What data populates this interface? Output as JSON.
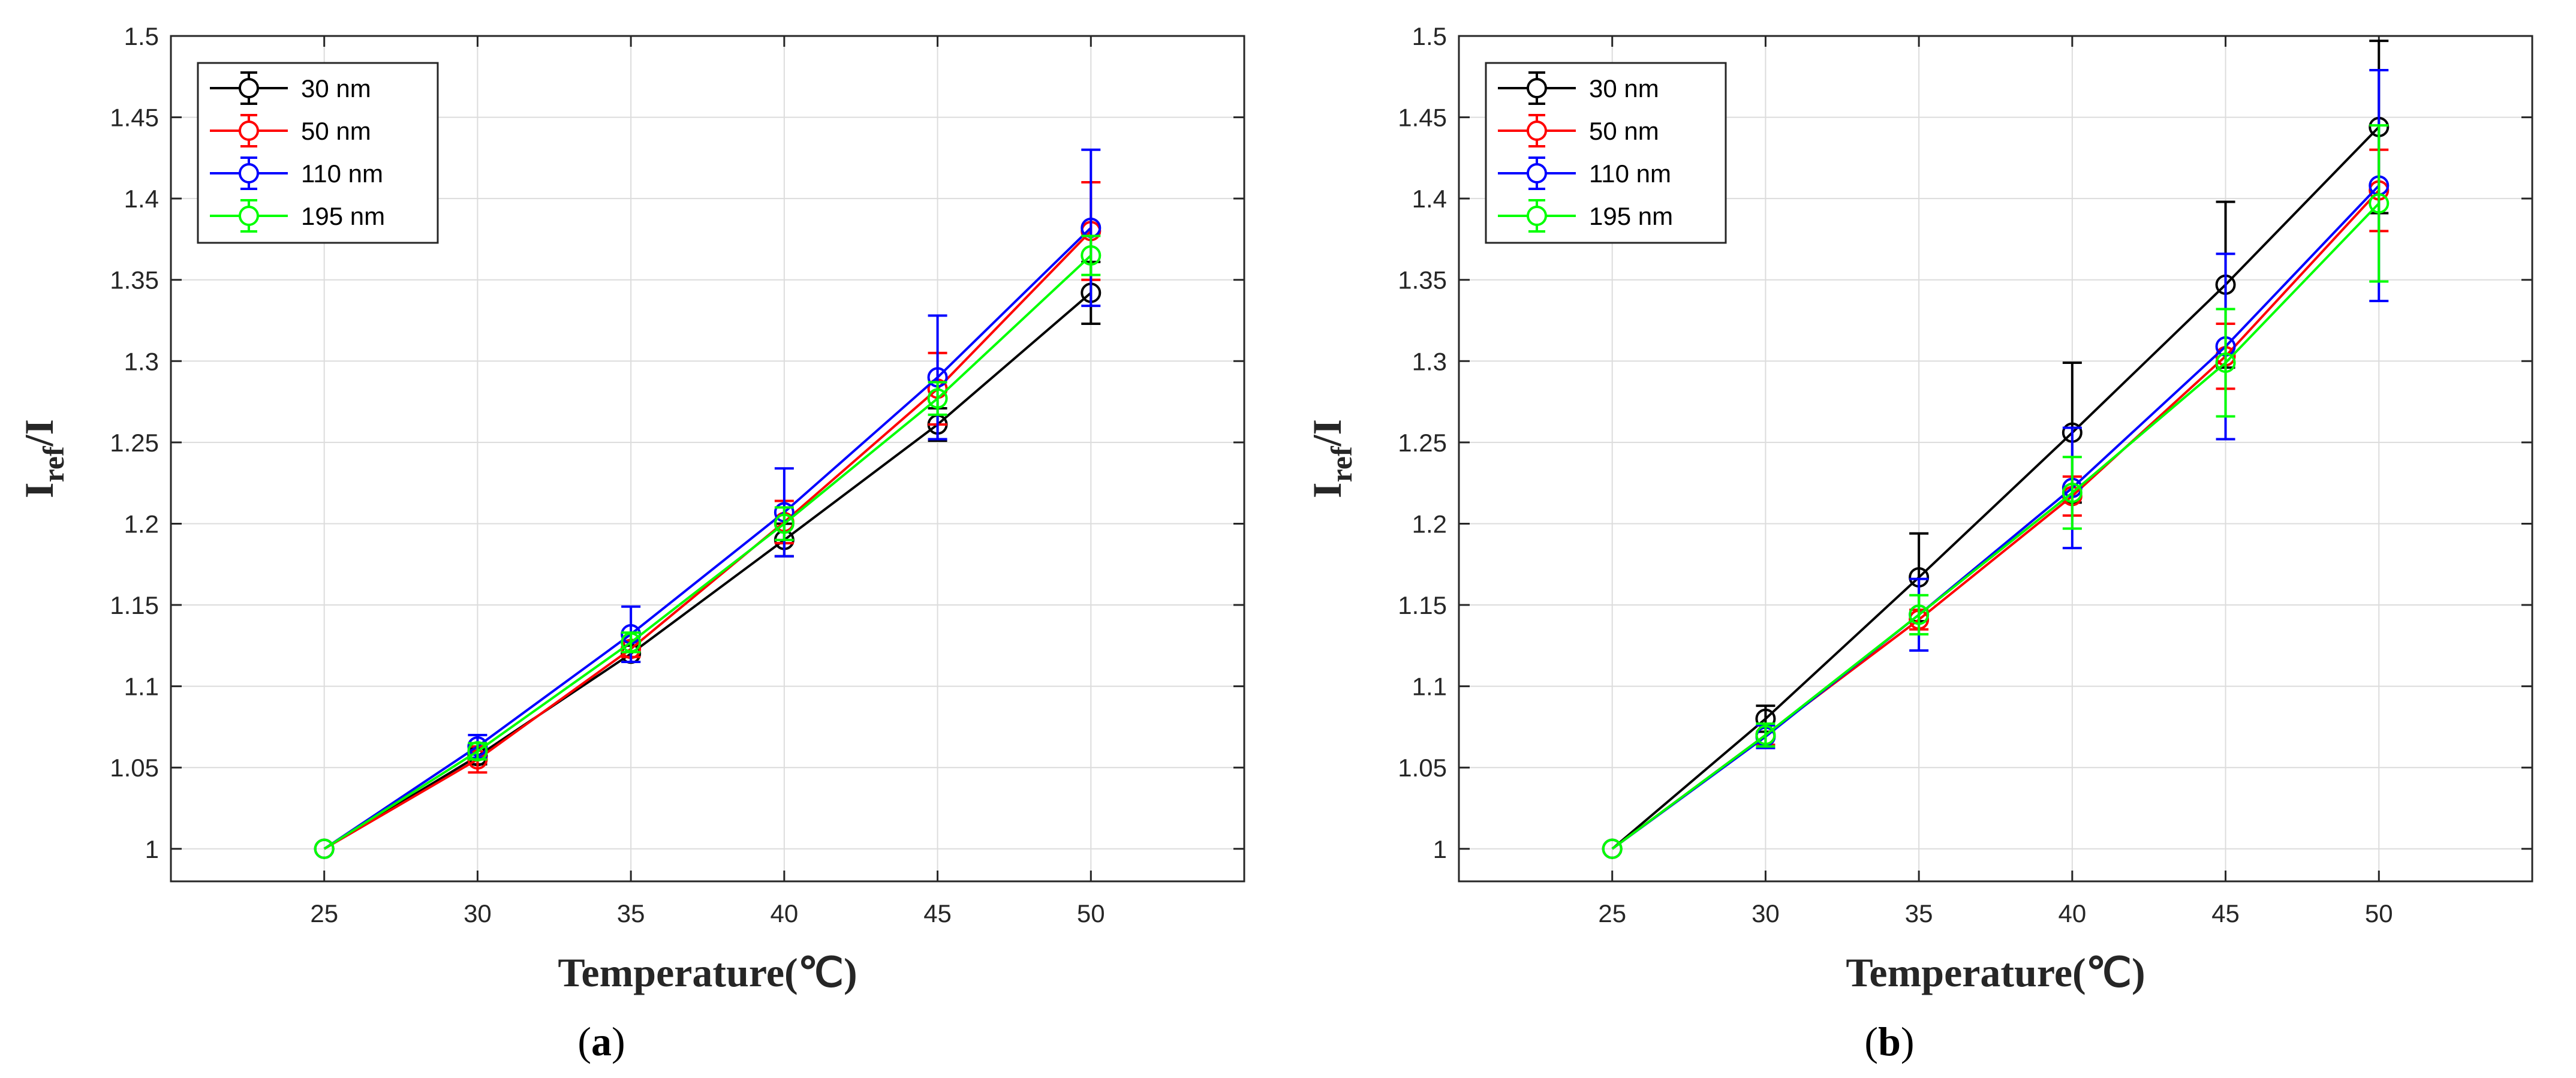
{
  "chart_data": [
    {
      "type": "line",
      "id": "a",
      "caption_open": "(",
      "caption_letter": "a",
      "caption_close": ")",
      "xlabel": "Temperature(℃)",
      "ylabel_main": "I",
      "ylabel_sub": "ref",
      "ylabel_tail": "/I",
      "xlim": [
        20,
        55
      ],
      "ylim": [
        0.98,
        1.5
      ],
      "xticks": [
        25,
        30,
        35,
        40,
        45,
        50
      ],
      "xtick_labels": [
        "25",
        "30",
        "35",
        "40",
        "45",
        "50"
      ],
      "yticks": [
        1,
        1.05,
        1.1,
        1.15,
        1.2,
        1.25,
        1.3,
        1.35,
        1.4,
        1.45,
        1.5
      ],
      "ytick_labels": [
        "1",
        "1.05",
        "1.1",
        "1.15",
        "1.2",
        "1.25",
        "1.3",
        "1.35",
        "1.4",
        "1.45",
        "1.5"
      ],
      "grid": true,
      "legend_position": "top-left",
      "x": [
        25,
        30,
        35,
        40,
        45,
        50
      ],
      "series": [
        {
          "name": "30 nm",
          "color": "#000000",
          "values": [
            1.0,
            1.057,
            1.12,
            1.19,
            1.261,
            1.342
          ],
          "errors": [
            0,
            0.005,
            0.005,
            0.01,
            0.01,
            0.019
          ]
        },
        {
          "name": "50 nm",
          "color": "#ff0000",
          "values": [
            1.0,
            1.055,
            1.123,
            1.201,
            1.283,
            1.38
          ],
          "errors": [
            0,
            0.008,
            0.005,
            0.013,
            0.022,
            0.03
          ]
        },
        {
          "name": "110 nm",
          "color": "#0000ff",
          "values": [
            1.0,
            1.063,
            1.132,
            1.207,
            1.29,
            1.382
          ],
          "errors": [
            0,
            0.007,
            0.017,
            0.027,
            0.038,
            0.048
          ]
        },
        {
          "name": "195 nm",
          "color": "#00ff00",
          "values": [
            1.0,
            1.06,
            1.127,
            1.2,
            1.277,
            1.365
          ],
          "errors": [
            0,
            0.005,
            0.006,
            0.01,
            0.01,
            0.012
          ]
        }
      ]
    },
    {
      "type": "line",
      "id": "b",
      "caption_open": "(",
      "caption_letter": "b",
      "caption_close": ")",
      "xlabel": "Temperature(℃)",
      "ylabel_main": "I",
      "ylabel_sub": "ref",
      "ylabel_tail": "/I",
      "xlim": [
        20,
        55
      ],
      "ylim": [
        0.98,
        1.5
      ],
      "xticks": [
        25,
        30,
        35,
        40,
        45,
        50
      ],
      "xtick_labels": [
        "25",
        "30",
        "35",
        "40",
        "45",
        "50"
      ],
      "yticks": [
        1,
        1.05,
        1.1,
        1.15,
        1.2,
        1.25,
        1.3,
        1.35,
        1.4,
        1.45,
        1.5
      ],
      "ytick_labels": [
        "1",
        "1.05",
        "1.1",
        "1.15",
        "1.2",
        "1.25",
        "1.3",
        "1.35",
        "1.4",
        "1.45",
        "1.5"
      ],
      "grid": true,
      "legend_position": "top-left",
      "x": [
        25,
        30,
        35,
        40,
        45,
        50
      ],
      "series": [
        {
          "name": "30 nm",
          "color": "#000000",
          "values": [
            1.0,
            1.08,
            1.167,
            1.256,
            1.347,
            1.444
          ],
          "errors": [
            0,
            0.008,
            0.027,
            0.043,
            0.051,
            0.053
          ]
        },
        {
          "name": "50 nm",
          "color": "#ff0000",
          "values": [
            1.0,
            1.07,
            1.141,
            1.217,
            1.303,
            1.405
          ],
          "errors": [
            0,
            0.006,
            0.006,
            0.012,
            0.02,
            0.025
          ]
        },
        {
          "name": "110 nm",
          "color": "#0000ff",
          "values": [
            1.0,
            1.069,
            1.144,
            1.222,
            1.309,
            1.408
          ],
          "errors": [
            0,
            0.007,
            0.022,
            0.037,
            0.057,
            0.071
          ]
        },
        {
          "name": "195 nm",
          "color": "#00ff00",
          "values": [
            1.0,
            1.07,
            1.144,
            1.219,
            1.299,
            1.397
          ],
          "errors": [
            0,
            0.007,
            0.012,
            0.022,
            0.033,
            0.048
          ]
        }
      ]
    }
  ]
}
